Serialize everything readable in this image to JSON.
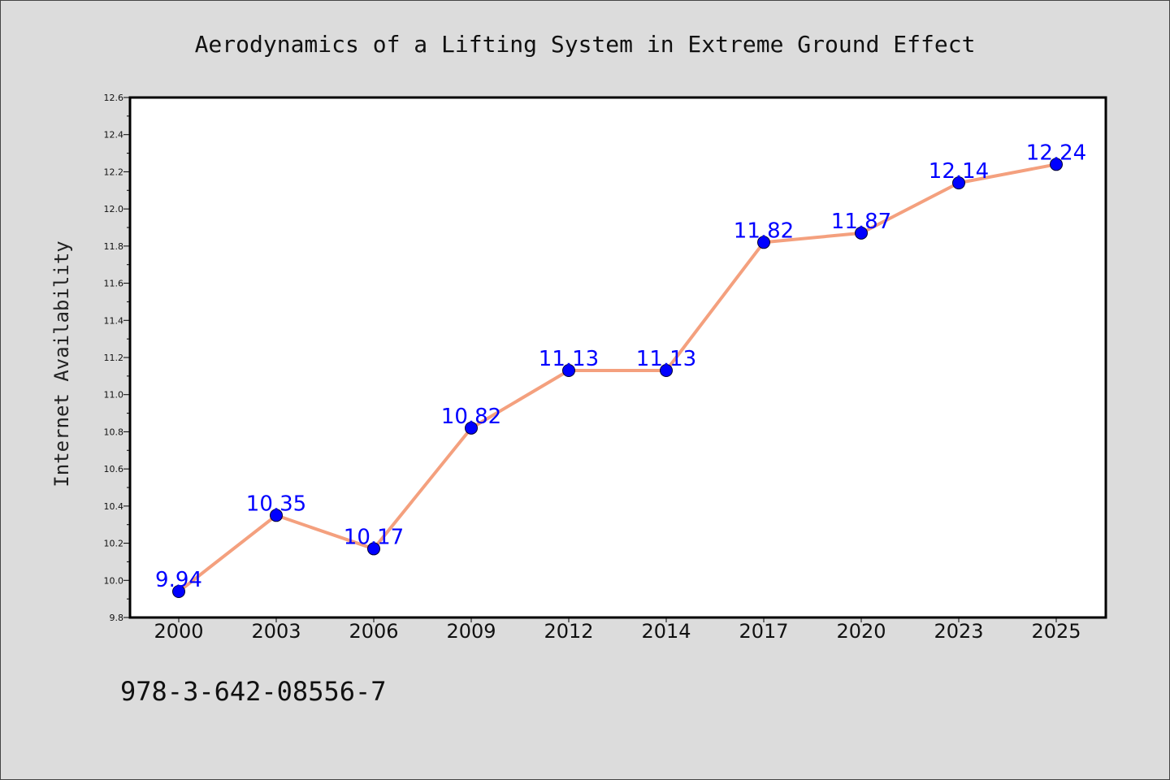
{
  "chart_data": {
    "type": "line",
    "title": "Aerodynamics of a Lifting System in Extreme Ground Effect",
    "ylabel": "Internet Availability",
    "xlabel": "",
    "categories": [
      "2000",
      "2003",
      "2006",
      "2009",
      "2012",
      "2014",
      "2017",
      "2020",
      "2023",
      "2025"
    ],
    "values": [
      9.94,
      10.35,
      10.17,
      10.82,
      11.13,
      11.13,
      11.82,
      11.87,
      12.14,
      12.24
    ],
    "data_labels": [
      "9.94",
      "10.35",
      "10.17",
      "10.82",
      "11.13",
      "11.13",
      "11.82",
      "11.87",
      "12.14",
      "12.24"
    ],
    "ylim": [
      9.8,
      12.6
    ],
    "yticks": [
      "9.8",
      "10.0",
      "10.2",
      "10.4",
      "10.6",
      "10.8",
      "11.0",
      "11.2",
      "11.4",
      "11.6",
      "11.8",
      "12.0",
      "12.2",
      "12.4",
      "12.6"
    ],
    "grid": false,
    "legend": "none",
    "line_color": "#f4a07e",
    "marker_color": "#0000ff",
    "label_color": "#0000ff"
  },
  "footnote": "978-3-642-08556-7"
}
